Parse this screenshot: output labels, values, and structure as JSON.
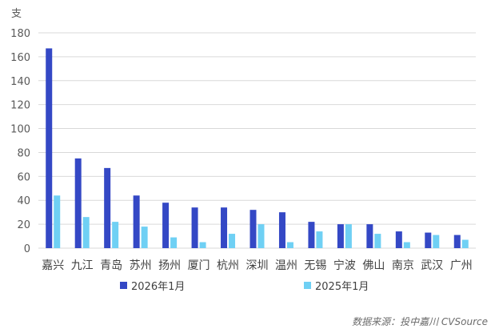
{
  "chart_data": {
    "type": "bar",
    "ylabel": "支",
    "ylim": [
      0,
      180
    ],
    "yticks": [
      0,
      20,
      40,
      60,
      80,
      100,
      120,
      140,
      160,
      180
    ],
    "grid": true,
    "legend_position": "bottom",
    "categories": [
      "嘉兴",
      "九江",
      "青岛",
      "苏州",
      "扬州",
      "厦门",
      "杭州",
      "深圳",
      "温州",
      "无锡",
      "宁波",
      "佛山",
      "南京",
      "武汉",
      "广州"
    ],
    "series": [
      {
        "name": "2026年1月",
        "color": "#3448C5",
        "values": [
          167,
          75,
          67,
          44,
          38,
          34,
          34,
          32,
          30,
          22,
          20,
          20,
          14,
          13,
          11
        ]
      },
      {
        "name": "2025年1月",
        "color": "#6FD0F4",
        "values": [
          44,
          26,
          22,
          18,
          9,
          5,
          12,
          20,
          5,
          14,
          20,
          12,
          5,
          11,
          7
        ]
      }
    ]
  },
  "source": "数据来源：投中嘉川 CVSource"
}
